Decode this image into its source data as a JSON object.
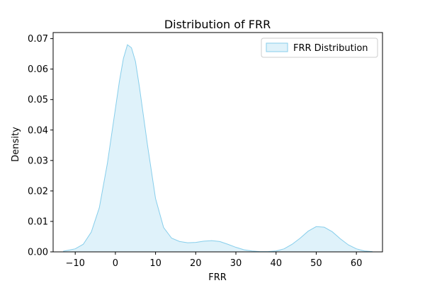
{
  "chart_data": {
    "type": "area",
    "title": "Distribution of FRR",
    "xlabel": "FRR",
    "ylabel": "Density",
    "xlim": [
      -15.5,
      66.5
    ],
    "ylim": [
      0,
      0.072
    ],
    "x_ticks": [
      -10,
      0,
      10,
      20,
      30,
      40,
      50,
      60
    ],
    "y_ticks": [
      0.0,
      0.01,
      0.02,
      0.03,
      0.04,
      0.05,
      0.06,
      0.07
    ],
    "y_tick_labels": [
      "0.00",
      "0.01",
      "0.02",
      "0.03",
      "0.04",
      "0.05",
      "0.06",
      "0.07"
    ],
    "grid": false,
    "legend_position": "top-right",
    "series": [
      {
        "name": "FRR Distribution",
        "color": "#87ceeb",
        "fill_color": "#dff2fa",
        "x": [
          -13,
          -10,
          -8,
          -6,
          -4,
          -2,
          0,
          1,
          2,
          3,
          4,
          5,
          6,
          8,
          10,
          12,
          14,
          16,
          18,
          20,
          22,
          24,
          26,
          28,
          30,
          32,
          34,
          36,
          38,
          40,
          42,
          44,
          46,
          48,
          50,
          52,
          54,
          56,
          58,
          60,
          62,
          64
        ],
        "y": [
          0.0002,
          0.001,
          0.0025,
          0.0065,
          0.0145,
          0.029,
          0.047,
          0.056,
          0.0635,
          0.068,
          0.067,
          0.0625,
          0.054,
          0.035,
          0.0175,
          0.008,
          0.0045,
          0.0034,
          0.003,
          0.0031,
          0.0035,
          0.0037,
          0.0034,
          0.0025,
          0.0015,
          0.0007,
          0.0003,
          0.0001,
          0.0001,
          0.0003,
          0.001,
          0.0025,
          0.0045,
          0.0068,
          0.0083,
          0.0081,
          0.0066,
          0.0043,
          0.0023,
          0.001,
          0.0003,
          0.0001
        ]
      }
    ]
  }
}
